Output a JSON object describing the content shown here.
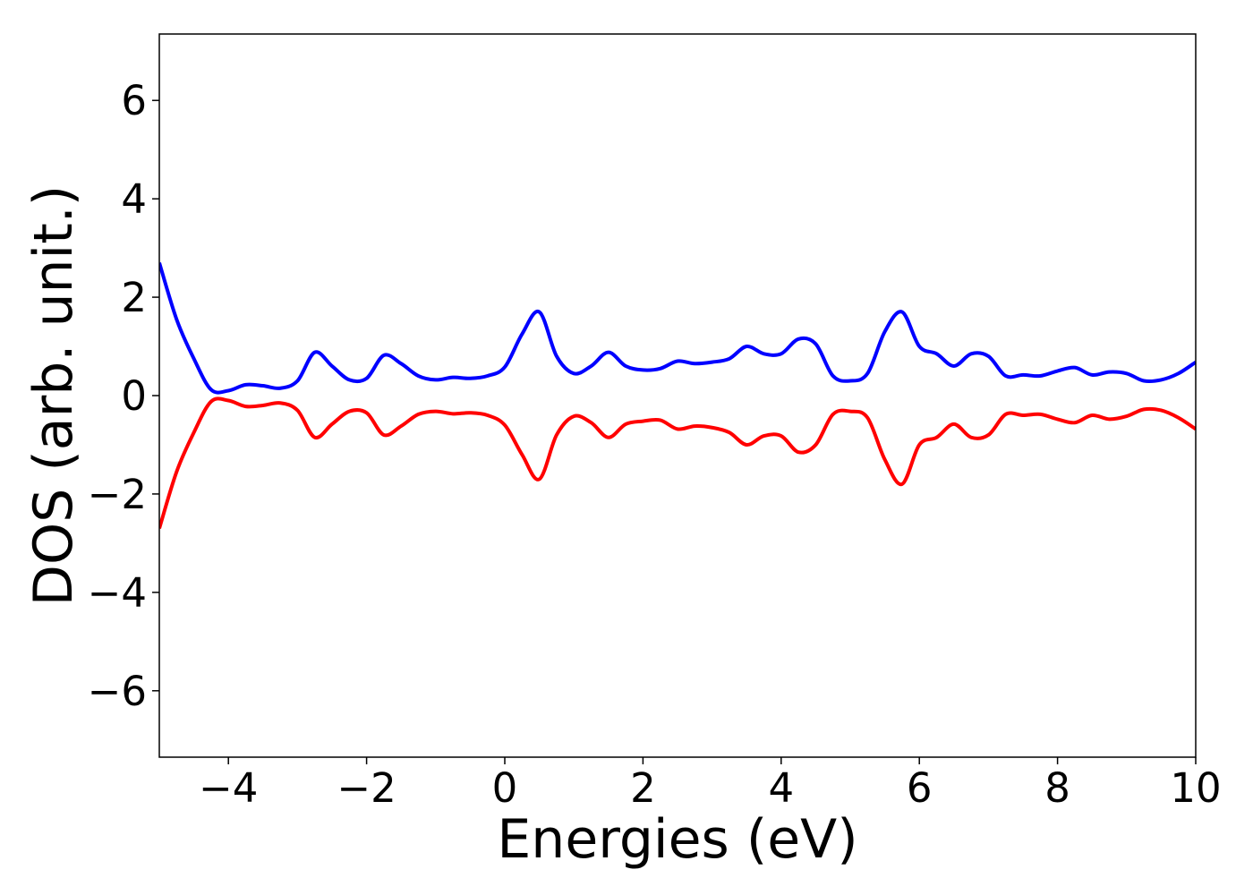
{
  "chart_data": {
    "type": "line",
    "xlabel": "Energies (eV)",
    "ylabel": "DOS (arb. unit.)",
    "x": [
      -5,
      -4.75,
      -4.5,
      -4.25,
      -4,
      -3.75,
      -3.5,
      -3.25,
      -3,
      -2.75,
      -2.5,
      -2.25,
      -2,
      -1.75,
      -1.5,
      -1.25,
      -1,
      -0.75,
      -0.5,
      -0.25,
      0,
      0.25,
      0.5,
      0.75,
      1,
      1.25,
      1.5,
      1.75,
      2,
      2.25,
      2.5,
      2.75,
      3,
      3.25,
      3.5,
      3.75,
      4,
      4.25,
      4.5,
      4.75,
      5,
      5.25,
      5.5,
      5.75,
      6,
      6.25,
      6.5,
      6.75,
      7,
      7.25,
      7.5,
      7.75,
      8,
      8.25,
      8.5,
      8.75,
      9,
      9.25,
      9.5,
      9.75,
      10
    ],
    "series": [
      {
        "color": "#0000ff",
        "values": [
          2.7,
          1.55,
          0.75,
          0.12,
          0.1,
          0.22,
          0.2,
          0.15,
          0.3,
          0.88,
          0.6,
          0.32,
          0.35,
          0.82,
          0.65,
          0.4,
          0.32,
          0.37,
          0.35,
          0.4,
          0.58,
          1.25,
          1.7,
          0.8,
          0.45,
          0.6,
          0.88,
          0.6,
          0.52,
          0.55,
          0.7,
          0.65,
          0.68,
          0.75,
          1.0,
          0.85,
          0.85,
          1.15,
          1.05,
          0.4,
          0.3,
          0.45,
          1.3,
          1.7,
          1.0,
          0.85,
          0.6,
          0.85,
          0.8,
          0.4,
          0.42,
          0.4,
          0.5,
          0.57,
          0.42,
          0.48,
          0.45,
          0.3,
          0.32,
          0.45,
          0.68
        ]
      },
      {
        "color": "#ff0000",
        "values": [
          -2.7,
          -1.55,
          -0.75,
          -0.12,
          -0.1,
          -0.22,
          -0.2,
          -0.15,
          -0.3,
          -0.85,
          -0.58,
          -0.32,
          -0.35,
          -0.8,
          -0.62,
          -0.38,
          -0.32,
          -0.37,
          -0.35,
          -0.4,
          -0.6,
          -1.2,
          -1.7,
          -0.8,
          -0.42,
          -0.55,
          -0.85,
          -0.58,
          -0.52,
          -0.5,
          -0.68,
          -0.62,
          -0.65,
          -0.75,
          -1.0,
          -0.82,
          -0.82,
          -1.15,
          -1.0,
          -0.38,
          -0.32,
          -0.45,
          -1.3,
          -1.8,
          -1.0,
          -0.85,
          -0.58,
          -0.85,
          -0.8,
          -0.38,
          -0.4,
          -0.38,
          -0.48,
          -0.55,
          -0.4,
          -0.48,
          -0.42,
          -0.28,
          -0.3,
          -0.45,
          -0.68
        ]
      }
    ],
    "xlim": [
      -5,
      10
    ],
    "xticks": [
      {
        "value": -4,
        "label": "−4"
      },
      {
        "value": -2,
        "label": "−2"
      },
      0,
      2,
      4,
      6,
      8,
      10
    ],
    "ylim": [
      -7.35,
      7.35
    ],
    "yticks": [
      {
        "value": -6,
        "label": "−6"
      },
      {
        "value": -4,
        "label": "−4"
      },
      {
        "value": -2,
        "label": "−2"
      },
      0,
      2,
      4,
      6
    ]
  }
}
